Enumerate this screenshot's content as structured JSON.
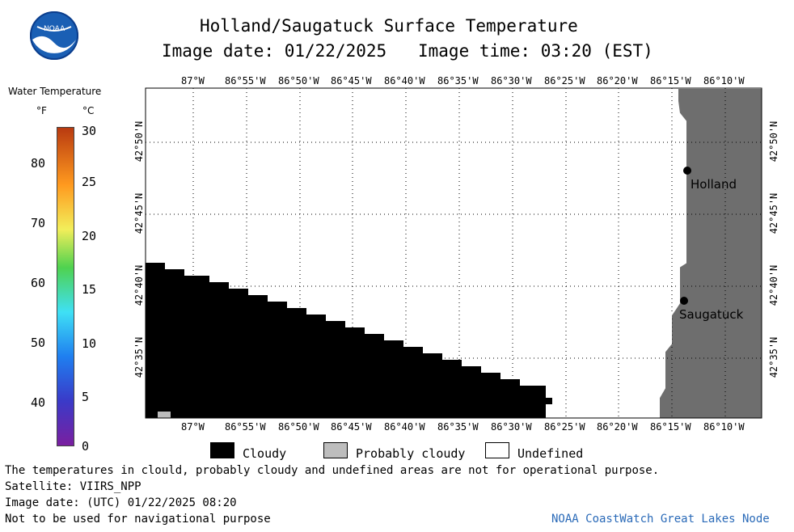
{
  "header": {
    "title": "Holland/Saugatuck Surface Temperature",
    "image_date": "Image date: 01/22/2025",
    "image_time": "Image time: 03:20 (EST)"
  },
  "logo": {
    "text": "NOAA",
    "icon": "noaa-logo-icon"
  },
  "colorbar": {
    "title": "Water Temperature",
    "unit_f": "°F",
    "unit_c": "°C",
    "f_ticks": [
      "40",
      "50",
      "60",
      "70",
      "80"
    ],
    "c_ticks": [
      "0",
      "5",
      "10",
      "15",
      "20",
      "25",
      "30"
    ]
  },
  "map": {
    "lon_labels": [
      "87°W",
      "86°55'W",
      "86°50'W",
      "86°45'W",
      "86°40'W",
      "86°35'W",
      "86°30'W",
      "86°25'W",
      "86°20'W",
      "86°15'W",
      "86°10'W"
    ],
    "lon_labels_bottom": [
      "87°W",
      "86°55'W",
      "86°50'W",
      "86°45'W",
      "86°40'W",
      "86°35'W",
      "86°30'W",
      "86°25'W",
      "86°20'W",
      "86°15'W",
      "86°10'W"
    ],
    "lat_labels": [
      "42°50'N",
      "42°45'N",
      "42°40'N",
      "42°35'N"
    ],
    "lat_labels_right": [
      "42°50'N",
      "42°45'N",
      "42°40'N",
      "42°35'N"
    ],
    "places": [
      {
        "name": "Holland"
      },
      {
        "name": "Saugatuck"
      }
    ],
    "colors": {
      "land": "#6e6e6e",
      "cloud": "#000000",
      "probably_cloudy": "#bdbdbd",
      "water": "#ffffff"
    }
  },
  "legend": {
    "cloudy": "Cloudy",
    "probably_cloudy": "Probably cloudy",
    "undefined": "Undefined"
  },
  "footer": {
    "note": "The temperatures in clould, probably cloudy and undefined areas are not for operational purpose.",
    "satellite": "Satellite: VIIRS_NPP",
    "utc_date": "Image date: (UTC) 01/22/2025  08:20",
    "nav_warning": "Not to be used for navigational purpose",
    "credit": "NOAA CoastWatch Great Lakes Node"
  }
}
